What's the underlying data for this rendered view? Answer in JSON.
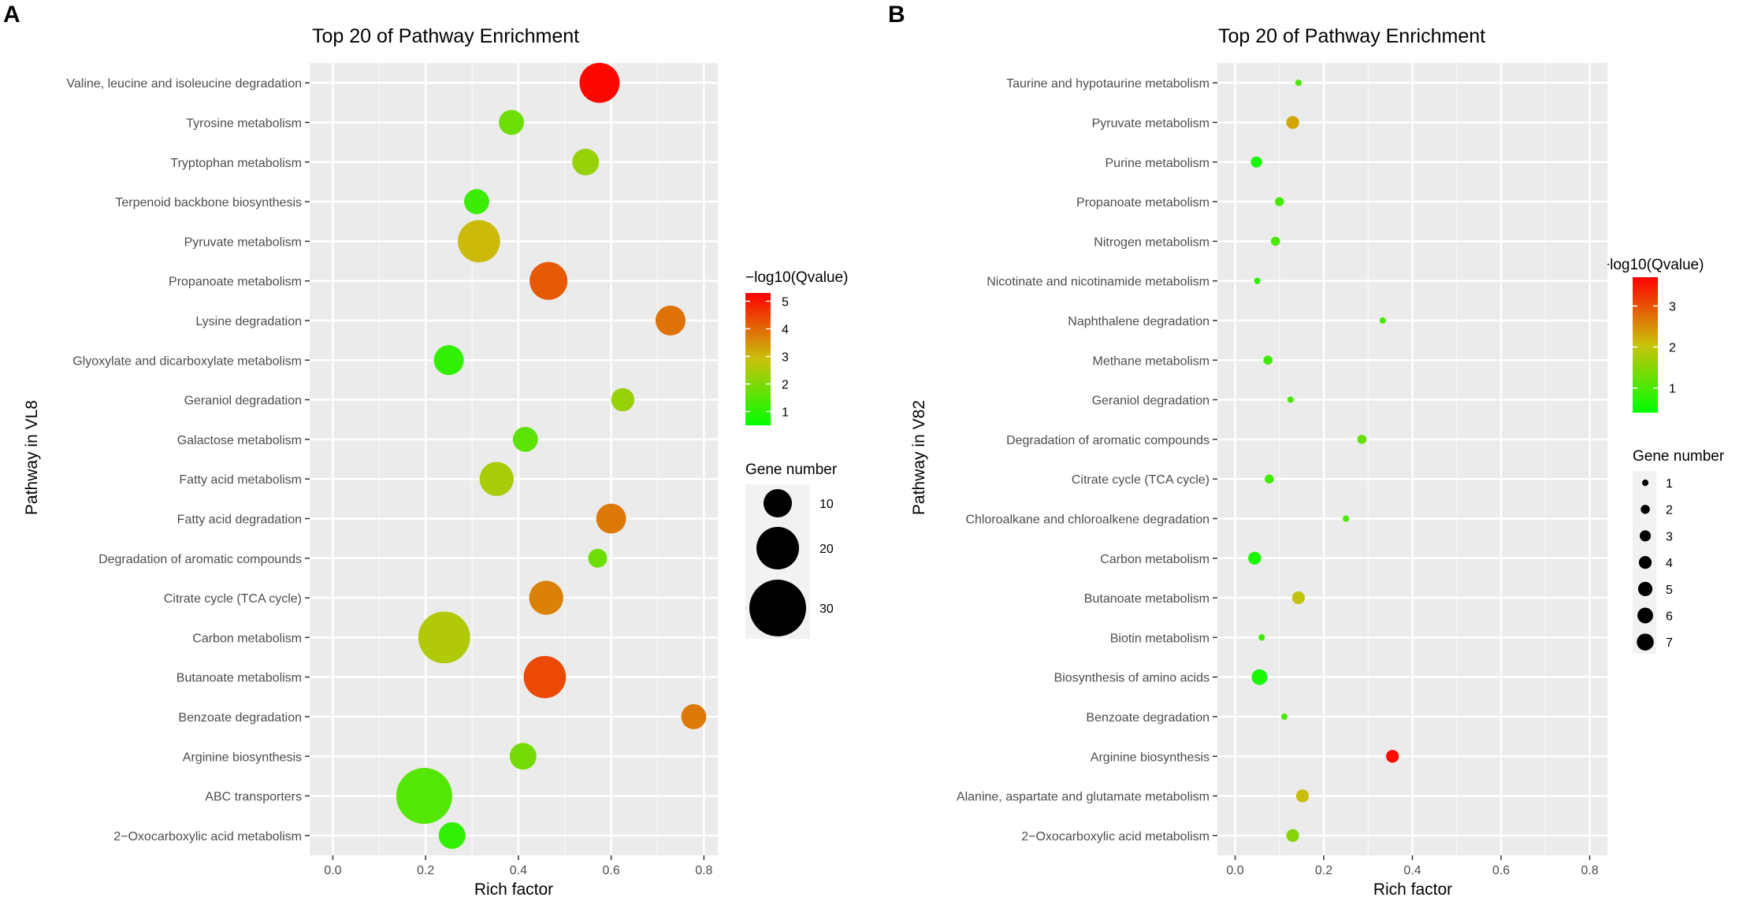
{
  "figure": {
    "panels": [
      {
        "label": "A",
        "title": "Top 20 of Pathway Enrichment",
        "xlabel": "Rich factor",
        "ylabel": "Pathway in VL8",
        "color_legend_title": "−log10(Qvalue)",
        "color_ticks": [
          "1",
          "2",
          "3",
          "4",
          "5"
        ],
        "size_legend_title": "Gene number",
        "size_ticks": [
          "10",
          "20",
          "30"
        ]
      },
      {
        "label": "B",
        "title": "Top 20 of Pathway Enrichment",
        "xlabel": "Rich factor",
        "ylabel": "Pathway in V82",
        "color_legend_title": "−log10(Qvalue)",
        "color_ticks": [
          "1",
          "2",
          "3"
        ],
        "size_legend_title": "Gene number",
        "size_ticks": [
          "1",
          "2",
          "3",
          "4",
          "5",
          "6",
          "7"
        ]
      }
    ]
  },
  "chart_data": [
    {
      "type": "scatter",
      "title": "Top 20 of Pathway Enrichment",
      "xlabel": "Rich factor",
      "ylabel": "Pathway in VL8",
      "xlim": [
        -0.05,
        0.83
      ],
      "xticks": [
        "0.0",
        "0.2",
        "0.4",
        "0.6",
        "0.8"
      ],
      "color_range": [
        0.5,
        5.3
      ],
      "colors": {
        "low": "#00ff00",
        "mid": "#c9c20a",
        "high": "#ff0000",
        "panel_bg": "#ebebeb",
        "grid": "#ffffff"
      },
      "categories": [
        "Valine, leucine and isoleucine degradation",
        "Tyrosine metabolism",
        "Tryptophan metabolism",
        "Terpenoid backbone biosynthesis",
        "Pyruvate metabolism",
        "Propanoate metabolism",
        "Lysine degradation",
        "Glyoxylate and dicarboxylate metabolism",
        "Geraniol degradation",
        "Galactose metabolism",
        "Fatty acid metabolism",
        "Fatty acid degradation",
        "Degradation of aromatic compounds",
        "Citrate cycle (TCA cycle)",
        "Carbon metabolism",
        "Butanoate metabolism",
        "Benzoate degradation",
        "Arginine biosynthesis",
        "ABC transporters",
        "2−Oxocarboxylic acid metabolism"
      ],
      "points": [
        {
          "pathway": "Valine, leucine and isoleucine degradation",
          "rich_factor": 0.575,
          "neg_log10_q": 5.2,
          "gene_number": 18
        },
        {
          "pathway": "Tyrosine metabolism",
          "rich_factor": 0.385,
          "neg_log10_q": 1.8,
          "gene_number": 7
        },
        {
          "pathway": "Tryptophan metabolism",
          "rich_factor": 0.545,
          "neg_log10_q": 2.3,
          "gene_number": 8
        },
        {
          "pathway": "Terpenoid backbone biosynthesis",
          "rich_factor": 0.31,
          "neg_log10_q": 1.2,
          "gene_number": 7
        },
        {
          "pathway": "Pyruvate metabolism",
          "rich_factor": 0.315,
          "neg_log10_q": 3.0,
          "gene_number": 20
        },
        {
          "pathway": "Propanoate metabolism",
          "rich_factor": 0.465,
          "neg_log10_q": 4.2,
          "gene_number": 16
        },
        {
          "pathway": "Lysine degradation",
          "rich_factor": 0.728,
          "neg_log10_q": 3.9,
          "gene_number": 10
        },
        {
          "pathway": "Glyoxylate and dicarboxylate metabolism",
          "rich_factor": 0.25,
          "neg_log10_q": 1.1,
          "gene_number": 10
        },
        {
          "pathway": "Geraniol degradation",
          "rich_factor": 0.625,
          "neg_log10_q": 2.3,
          "gene_number": 6
        },
        {
          "pathway": "Galactose metabolism",
          "rich_factor": 0.415,
          "neg_log10_q": 1.6,
          "gene_number": 7
        },
        {
          "pathway": "Fatty acid metabolism",
          "rich_factor": 0.353,
          "neg_log10_q": 2.5,
          "gene_number": 13
        },
        {
          "pathway": "Fatty acid degradation",
          "rich_factor": 0.6,
          "neg_log10_q": 3.8,
          "gene_number": 10
        },
        {
          "pathway": "Degradation of aromatic compounds",
          "rich_factor": 0.571,
          "neg_log10_q": 1.8,
          "gene_number": 4
        },
        {
          "pathway": "Citrate cycle (TCA cycle)",
          "rich_factor": 0.46,
          "neg_log10_q": 3.7,
          "gene_number": 13
        },
        {
          "pathway": "Carbon metabolism",
          "rich_factor": 0.24,
          "neg_log10_q": 2.6,
          "gene_number": 30
        },
        {
          "pathway": "Butanoate metabolism",
          "rich_factor": 0.457,
          "neg_log10_q": 4.4,
          "gene_number": 20
        },
        {
          "pathway": "Benzoate degradation",
          "rich_factor": 0.778,
          "neg_log10_q": 3.8,
          "gene_number": 7
        },
        {
          "pathway": "Arginine biosynthesis",
          "rich_factor": 0.41,
          "neg_log10_q": 1.9,
          "gene_number": 8
        },
        {
          "pathway": "ABC transporters",
          "rich_factor": 0.197,
          "neg_log10_q": 1.5,
          "gene_number": 35
        },
        {
          "pathway": "2−Oxocarboxylic acid metabolism",
          "rich_factor": 0.257,
          "neg_log10_q": 1.1,
          "gene_number": 8
        }
      ],
      "size_legend": [
        10,
        20,
        30
      ],
      "size_max_value": 36
    },
    {
      "type": "scatter",
      "title": "Top 20 of Pathway Enrichment",
      "xlabel": "Rich factor",
      "ylabel": "Pathway in V82",
      "xlim": [
        -0.04,
        0.84
      ],
      "xticks": [
        "0.0",
        "0.2",
        "0.4",
        "0.6",
        "0.8"
      ],
      "color_range": [
        0.4,
        3.7
      ],
      "colors": {
        "low": "#00ff00",
        "mid": "#c9c20a",
        "high": "#ff0000",
        "panel_bg": "#ebebeb",
        "grid": "#ffffff"
      },
      "categories": [
        "Taurine and hypotaurine metabolism",
        "Pyruvate metabolism",
        "Purine metabolism",
        "Propanoate metabolism",
        "Nitrogen metabolism",
        "Nicotinate and nicotinamide metabolism",
        "Naphthalene degradation",
        "Methane metabolism",
        "Geraniol degradation",
        "Degradation of aromatic compounds",
        "Citrate cycle (TCA cycle)",
        "Chloroalkane and chloroalkene degradation",
        "Carbon metabolism",
        "Butanoate metabolism",
        "Biotin metabolism",
        "Biosynthesis of amino acids",
        "Benzoate degradation",
        "Arginine biosynthesis",
        "Alanine, aspartate and glutamate metabolism",
        "2−Oxocarboxylic acid metabolism"
      ],
      "points": [
        {
          "pathway": "Taurine and hypotaurine metabolism",
          "rich_factor": 0.143,
          "neg_log10_q": 1.0,
          "gene_number": 1
        },
        {
          "pathway": "Pyruvate metabolism",
          "rich_factor": 0.13,
          "neg_log10_q": 2.3,
          "gene_number": 4
        },
        {
          "pathway": "Purine metabolism",
          "rich_factor": 0.048,
          "neg_log10_q": 0.6,
          "gene_number": 3
        },
        {
          "pathway": "Propanoate metabolism",
          "rich_factor": 0.1,
          "neg_log10_q": 1.0,
          "gene_number": 2
        },
        {
          "pathway": "Nitrogen metabolism",
          "rich_factor": 0.091,
          "neg_log10_q": 1.0,
          "gene_number": 2
        },
        {
          "pathway": "Nicotinate and nicotinamide metabolism",
          "rich_factor": 0.05,
          "neg_log10_q": 0.8,
          "gene_number": 1
        },
        {
          "pathway": "Naphthalene degradation",
          "rich_factor": 0.333,
          "neg_log10_q": 1.0,
          "gene_number": 1
        },
        {
          "pathway": "Methane metabolism",
          "rich_factor": 0.074,
          "neg_log10_q": 0.9,
          "gene_number": 2
        },
        {
          "pathway": "Geraniol degradation",
          "rich_factor": 0.125,
          "neg_log10_q": 1.0,
          "gene_number": 1
        },
        {
          "pathway": "Degradation of aromatic compounds",
          "rich_factor": 0.286,
          "neg_log10_q": 1.2,
          "gene_number": 2
        },
        {
          "pathway": "Citrate cycle (TCA cycle)",
          "rich_factor": 0.077,
          "neg_log10_q": 0.9,
          "gene_number": 2
        },
        {
          "pathway": "Chloroalkane and chloroalkene degradation",
          "rich_factor": 0.25,
          "neg_log10_q": 1.0,
          "gene_number": 1
        },
        {
          "pathway": "Carbon metabolism",
          "rich_factor": 0.044,
          "neg_log10_q": 0.6,
          "gene_number": 4
        },
        {
          "pathway": "Butanoate metabolism",
          "rich_factor": 0.143,
          "neg_log10_q": 2.0,
          "gene_number": 4
        },
        {
          "pathway": "Biotin metabolism",
          "rich_factor": 0.06,
          "neg_log10_q": 0.9,
          "gene_number": 1
        },
        {
          "pathway": "Biosynthesis of amino acids",
          "rich_factor": 0.055,
          "neg_log10_q": 0.6,
          "gene_number": 6
        },
        {
          "pathway": "Benzoate degradation",
          "rich_factor": 0.111,
          "neg_log10_q": 1.0,
          "gene_number": 1
        },
        {
          "pathway": "Arginine biosynthesis",
          "rich_factor": 0.355,
          "neg_log10_q": 3.6,
          "gene_number": 4
        },
        {
          "pathway": "Alanine, aspartate and glutamate metabolism",
          "rich_factor": 0.152,
          "neg_log10_q": 2.1,
          "gene_number": 4
        },
        {
          "pathway": "2−Oxocarboxylic acid metabolism",
          "rich_factor": 0.13,
          "neg_log10_q": 1.5,
          "gene_number": 4
        }
      ],
      "size_legend": [
        1,
        2,
        3,
        4,
        5,
        6,
        7
      ],
      "size_max_value": 8
    }
  ]
}
